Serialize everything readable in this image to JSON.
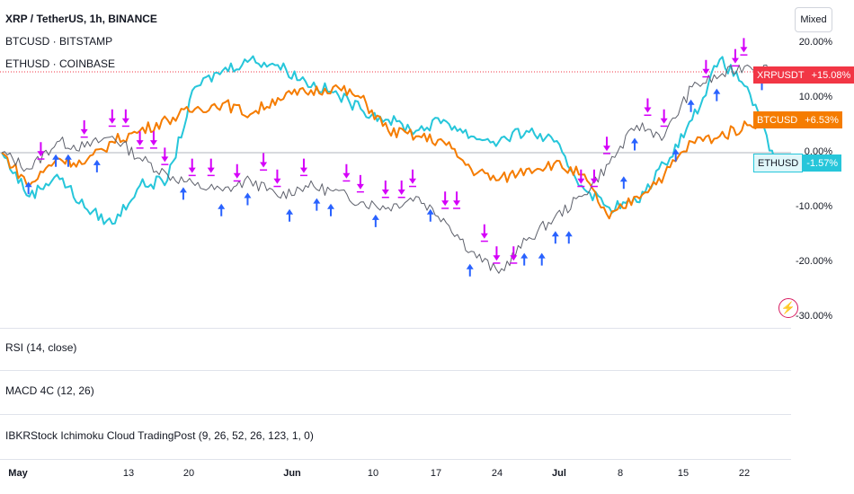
{
  "header": {
    "main_symbol": "XRP / TetherUS, 1h, BINANCE",
    "compare_1": "BTCUSD · BITSTAMP",
    "compare_2": "ETHUSD · COINBASE",
    "scale_mode_button": "Mixed"
  },
  "panes": {
    "rsi": "RSI (14, close)",
    "macd": "MACD 4C (12, 26)",
    "ichimoku": "IBKRStock Ichimoku Cloud TradingPost (9, 26, 52, 26, 123, 1, 0)"
  },
  "price_tags": [
    {
      "name": "XRPUSDT",
      "pct": "+15.08%",
      "color": "#f23645"
    },
    {
      "name": "BTCUSD",
      "pct": "+6.53%",
      "color": "#f57c00"
    },
    {
      "name": "ETHUSD",
      "pct": "-1.57%",
      "color": "#26c6da"
    }
  ],
  "chart_data": {
    "type": "line",
    "yaxis_labels": [
      "20.00%",
      "10.00%",
      "0.00%",
      "-10.00%",
      "-20.00%",
      "-30.00%"
    ],
    "y_ticks": [
      20,
      10,
      0,
      -10,
      -20,
      -30
    ],
    "xaxis_labels": [
      {
        "label": "May",
        "bold": true
      },
      {
        "label": "13",
        "bold": false
      },
      {
        "label": "20",
        "bold": false
      },
      {
        "label": "Jun",
        "bold": true
      },
      {
        "label": "10",
        "bold": false
      },
      {
        "label": "17",
        "bold": false
      },
      {
        "label": "24",
        "bold": false
      },
      {
        "label": "Jul",
        "bold": true
      },
      {
        "label": "8",
        "bold": false
      },
      {
        "label": "15",
        "bold": false
      },
      {
        "label": "22",
        "bold": false
      }
    ],
    "x": [
      0,
      3,
      6,
      9,
      12,
      15,
      18,
      21,
      24,
      27,
      30,
      33,
      36,
      39,
      42,
      45,
      48,
      51,
      54,
      57,
      60,
      63,
      66,
      69,
      72,
      75,
      78,
      81,
      84
    ],
    "series": [
      {
        "name": "XRPUSDT",
        "color": "#5d606b",
        "last_value": 15.08,
        "values": [
          0,
          -3,
          2,
          1,
          3,
          -1,
          -4,
          -6,
          -7,
          -5,
          -8,
          -6,
          -7,
          -9,
          -10,
          -8,
          -12,
          -18,
          -22,
          -16,
          -12,
          -8,
          -2,
          5,
          3,
          12,
          14,
          16,
          15.08
        ]
      },
      {
        "name": "BTCUSD",
        "color": "#f57c00",
        "last_value": 6.53,
        "values": [
          0,
          -6,
          -1,
          -2,
          2,
          4,
          6,
          8,
          9,
          7,
          10,
          11,
          12,
          10,
          4,
          3,
          2,
          -3,
          -5,
          -3,
          -2,
          -4,
          -12,
          -8,
          -4,
          2,
          3,
          5,
          6.53
        ]
      },
      {
        "name": "ETHUSD",
        "color": "#26c6da",
        "last_value": -1.57,
        "values": [
          0,
          -8,
          -4,
          -10,
          -13,
          -6,
          -5,
          12,
          15,
          17,
          16,
          13,
          11,
          8,
          6,
          4,
          6,
          3,
          2,
          4,
          2,
          -6,
          -10,
          -9,
          -2,
          6,
          17,
          12,
          -1.57
        ]
      }
    ]
  }
}
